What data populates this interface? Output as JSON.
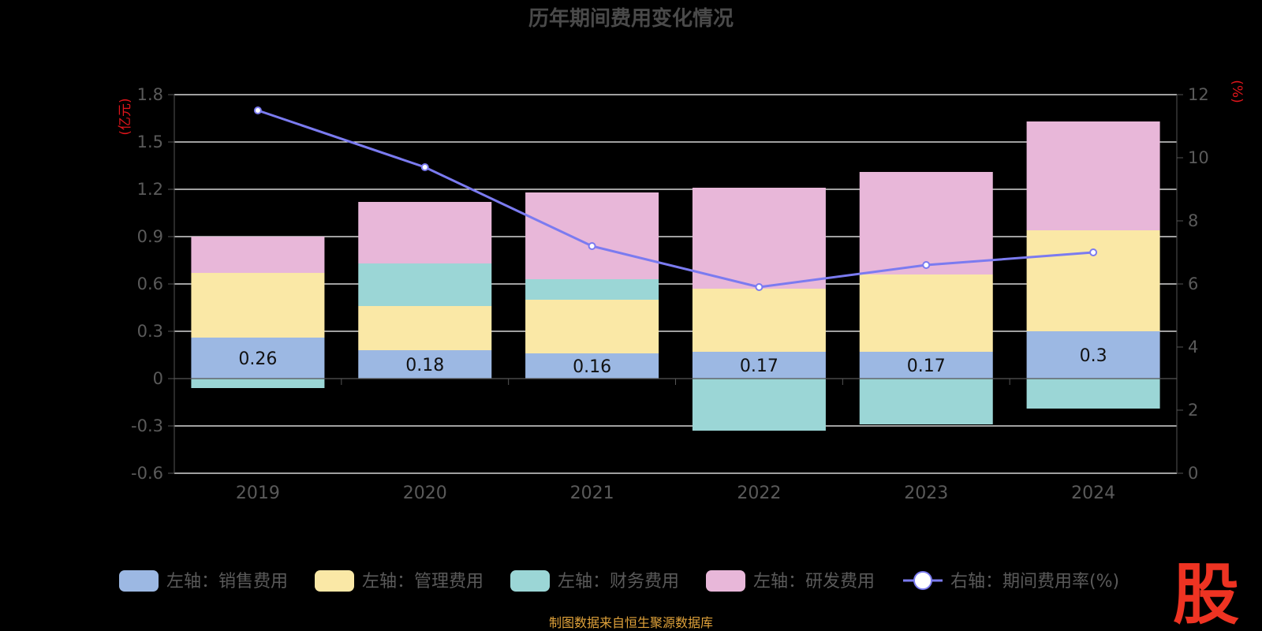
{
  "chart_data": {
    "type": "bar",
    "title": "历年期间费用变化情况",
    "categories": [
      "2019",
      "2020",
      "2021",
      "2022",
      "2023",
      "2024"
    ],
    "left_axis": {
      "unit": "(亿元)",
      "ylim": [
        -0.6,
        1.8
      ],
      "ticks": [
        "1.8",
        "1.5",
        "1.2",
        "0.9",
        "0.6",
        "0.3",
        "0",
        "-0.3",
        "-0.6"
      ]
    },
    "right_axis": {
      "unit": "(%)",
      "ylim": [
        0,
        12
      ],
      "ticks": [
        "12",
        "10",
        "8",
        "6",
        "4",
        "2",
        "0"
      ]
    },
    "series": [
      {
        "name": "左轴：销售费用",
        "color": "#9cb8e3",
        "values": [
          0.26,
          0.18,
          0.16,
          0.17,
          0.17,
          0.3
        ],
        "labels": [
          "0.26",
          "0.18",
          "0.16",
          "0.17",
          "0.17",
          "0.3"
        ]
      },
      {
        "name": "左轴：管理费用",
        "color": "#fae8a6",
        "values": [
          0.41,
          0.28,
          0.34,
          0.4,
          0.49,
          0.64
        ]
      },
      {
        "name": "左轴：财务费用",
        "color": "#9bd6d6",
        "values": [
          -0.06,
          0.27,
          0.13,
          -0.33,
          -0.29,
          -0.19
        ]
      },
      {
        "name": "左轴：研发费用",
        "color": "#e8b7d9",
        "values": [
          0.23,
          0.39,
          0.55,
          0.64,
          0.65,
          0.69
        ]
      }
    ],
    "line": {
      "name": "右轴：期间费用率(%)",
      "color": "#7b7bf0",
      "values": [
        11.5,
        9.7,
        7.2,
        5.9,
        6.6,
        7.0
      ]
    }
  },
  "source": "制图数据来自恒生聚源数据库",
  "logo": "股"
}
